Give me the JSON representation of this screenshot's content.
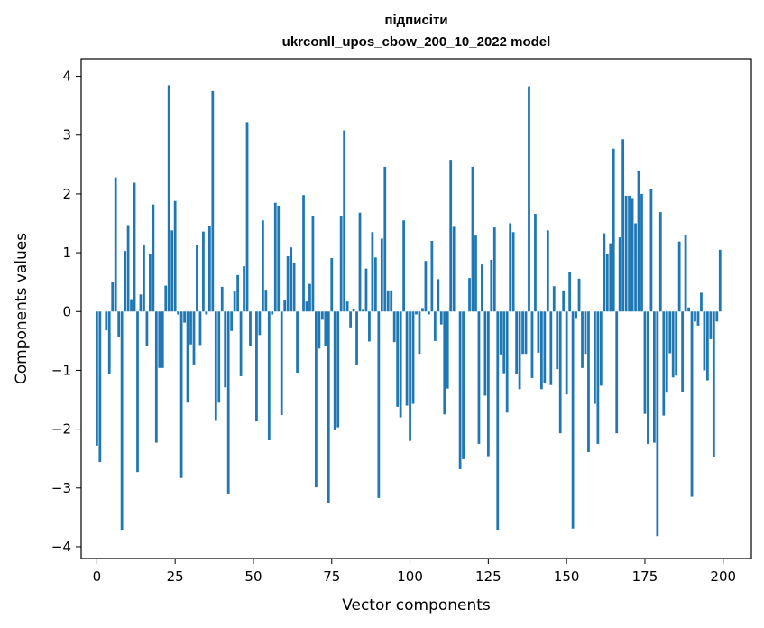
{
  "chart_data": {
    "type": "bar",
    "title": "підписіти",
    "subtitle": "ukrconll_upos_cbow_200_10_2022 model",
    "xlabel": "Vector components",
    "ylabel": "Components values",
    "xlim": [
      -5,
      209
    ],
    "ylim": [
      -4.2,
      4.3
    ],
    "xticks": [
      0,
      25,
      50,
      75,
      100,
      125,
      150,
      175,
      200
    ],
    "xtick_labels": [
      "0",
      "25",
      "50",
      "75",
      "100",
      "125",
      "150",
      "175",
      "200"
    ],
    "yticks": [
      -4,
      -3,
      -2,
      -1,
      0,
      1,
      2,
      3,
      4
    ],
    "ytick_labels": [
      "−4",
      "−3",
      "−2",
      "−1",
      "0",
      "1",
      "2",
      "3",
      "4"
    ],
    "bar_color": "#1f77b4",
    "grid": false,
    "x": [
      0,
      1,
      2,
      3,
      4,
      5,
      6,
      7,
      8,
      9,
      10,
      11,
      12,
      13,
      14,
      15,
      16,
      17,
      18,
      19,
      20,
      21,
      22,
      23,
      24,
      25,
      26,
      27,
      28,
      29,
      30,
      31,
      32,
      33,
      34,
      35,
      36,
      37,
      38,
      39,
      40,
      41,
      42,
      43,
      44,
      45,
      46,
      47,
      48,
      49,
      50,
      51,
      52,
      53,
      54,
      55,
      56,
      57,
      58,
      59,
      60,
      61,
      62,
      63,
      64,
      65,
      66,
      67,
      68,
      69,
      70,
      71,
      72,
      73,
      74,
      75,
      76,
      77,
      78,
      79,
      80,
      81,
      82,
      83,
      84,
      85,
      86,
      87,
      88,
      89,
      90,
      91,
      92,
      93,
      94,
      95,
      96,
      97,
      98,
      99,
      100,
      101,
      102,
      103,
      104,
      105,
      106,
      107,
      108,
      109,
      110,
      111,
      112,
      113,
      114,
      115,
      116,
      117,
      118,
      119,
      120,
      121,
      122,
      123,
      124,
      125,
      126,
      127,
      128,
      129,
      130,
      131,
      132,
      133,
      134,
      135,
      136,
      137,
      138,
      139,
      140,
      141,
      142,
      143,
      144,
      145,
      146,
      147,
      148,
      149,
      150,
      151,
      152,
      153,
      154,
      155,
      156,
      157,
      158,
      159,
      160,
      161,
      162,
      163,
      164,
      165,
      166,
      167,
      168,
      169,
      170,
      171,
      172,
      173,
      174,
      175,
      176,
      177,
      178,
      179,
      180,
      181,
      182,
      183,
      184,
      185,
      186,
      187,
      188,
      189,
      190,
      191,
      192,
      193,
      194,
      195,
      196,
      197,
      198,
      199
    ],
    "values": [
      -2.28,
      -2.56,
      0.0,
      -0.32,
      -1.07,
      0.5,
      2.28,
      -0.44,
      -3.71,
      1.03,
      1.47,
      0.21,
      2.19,
      -2.73,
      0.29,
      1.14,
      -0.58,
      0.97,
      1.82,
      -2.23,
      -0.96,
      -0.96,
      0.44,
      3.85,
      1.38,
      1.88,
      -0.05,
      -2.83,
      -0.19,
      -1.55,
      -0.56,
      -0.9,
      1.14,
      -0.57,
      1.36,
      -0.05,
      1.45,
      3.75,
      -1.86,
      -1.55,
      0.42,
      -1.29,
      -3.1,
      -0.33,
      0.34,
      0.62,
      -1.1,
      0.77,
      3.22,
      -0.58,
      0.0,
      -1.87,
      -0.4,
      1.55,
      0.37,
      -2.19,
      -0.05,
      1.85,
      1.8,
      -1.76,
      0.2,
      0.94,
      1.09,
      0.83,
      -1.04,
      0.0,
      1.98,
      0.17,
      0.47,
      1.63,
      -2.99,
      -0.63,
      -0.14,
      -0.58,
      -3.26,
      0.91,
      -2.02,
      -1.97,
      1.63,
      3.08,
      0.17,
      -0.27,
      0.05,
      -0.9,
      1.68,
      0.03,
      0.73,
      -0.51,
      1.35,
      0.92,
      -3.17,
      1.24,
      2.46,
      0.36,
      0.36,
      -0.52,
      -1.62,
      -1.8,
      1.55,
      -1.6,
      -2.2,
      -1.57,
      -0.05,
      -0.72,
      0.06,
      0.86,
      -0.05,
      1.2,
      -0.5,
      0.55,
      -0.22,
      -1.75,
      -1.31,
      2.58,
      1.44,
      0.0,
      -2.68,
      -2.51,
      0.0,
      0.57,
      2.46,
      1.29,
      -2.25,
      0.8,
      -1.43,
      -2.46,
      0.88,
      1.43,
      -3.71,
      -0.73,
      -1.05,
      -1.72,
      1.5,
      1.35,
      -1.06,
      -1.32,
      -0.72,
      -0.72,
      3.83,
      -1.13,
      1.66,
      -0.7,
      -1.32,
      -1.22,
      1.38,
      -1.25,
      0.43,
      -0.98,
      -2.07,
      0.36,
      -1.41,
      0.67,
      -3.69,
      -0.11,
      0.56,
      -0.96,
      -0.72,
      -2.39,
      0.0,
      -1.57,
      -2.25,
      -1.26,
      1.33,
      0.98,
      1.16,
      2.77,
      -2.07,
      1.26,
      2.93,
      1.97,
      1.97,
      1.93,
      1.5,
      2.4,
      2.0,
      -1.74,
      -2.25,
      2.08,
      -2.23,
      -3.82,
      1.69,
      -1.77,
      -1.38,
      -0.71,
      -1.12,
      -1.09,
      1.19,
      -1.37,
      1.31,
      0.07,
      -3.15,
      -0.17,
      -0.24,
      0.32,
      -1.0,
      -1.17,
      -0.47,
      -2.47,
      -0.17,
      1.05
    ]
  }
}
